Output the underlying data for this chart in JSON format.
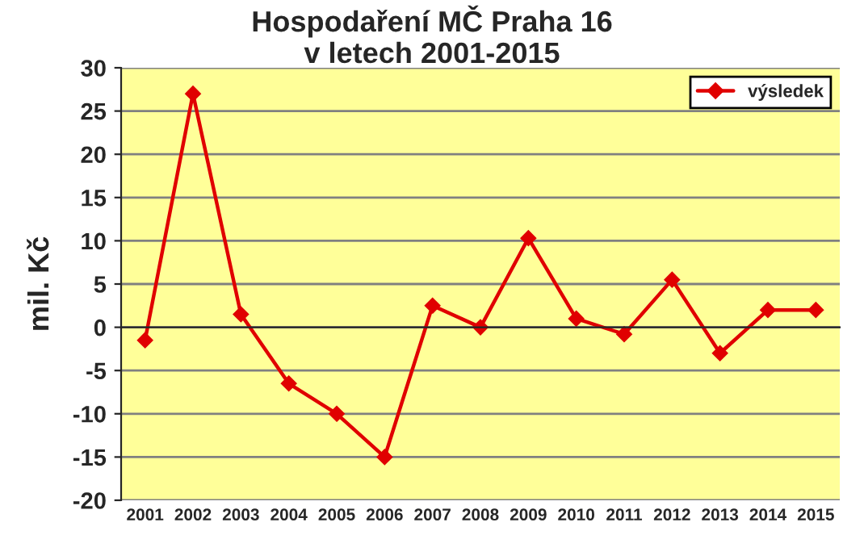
{
  "chart_data": {
    "type": "line",
    "title": "Hospodaření MČ Praha 16\nv letech 2001-2015",
    "ylabel": "mil. Kč",
    "categories": [
      "2001",
      "2002",
      "2003",
      "2004",
      "2005",
      "2006",
      "2007",
      "2008",
      "2009",
      "2010",
      "2011",
      "2012",
      "2013",
      "2014",
      "2015"
    ],
    "series": [
      {
        "name": "výsledek",
        "color": "#e00000",
        "values": [
          -1.5,
          27,
          1.5,
          -6.5,
          -10,
          -15,
          2.5,
          0,
          10.3,
          1,
          -0.8,
          5.5,
          -3,
          2,
          2
        ]
      }
    ],
    "ylim": [
      -20,
      30
    ],
    "yticks": [
      -20,
      -15,
      -10,
      -5,
      0,
      5,
      10,
      15,
      20,
      25,
      30
    ],
    "grid": "y",
    "legend": "top right",
    "marker": "diamond",
    "line_style": "solid"
  }
}
